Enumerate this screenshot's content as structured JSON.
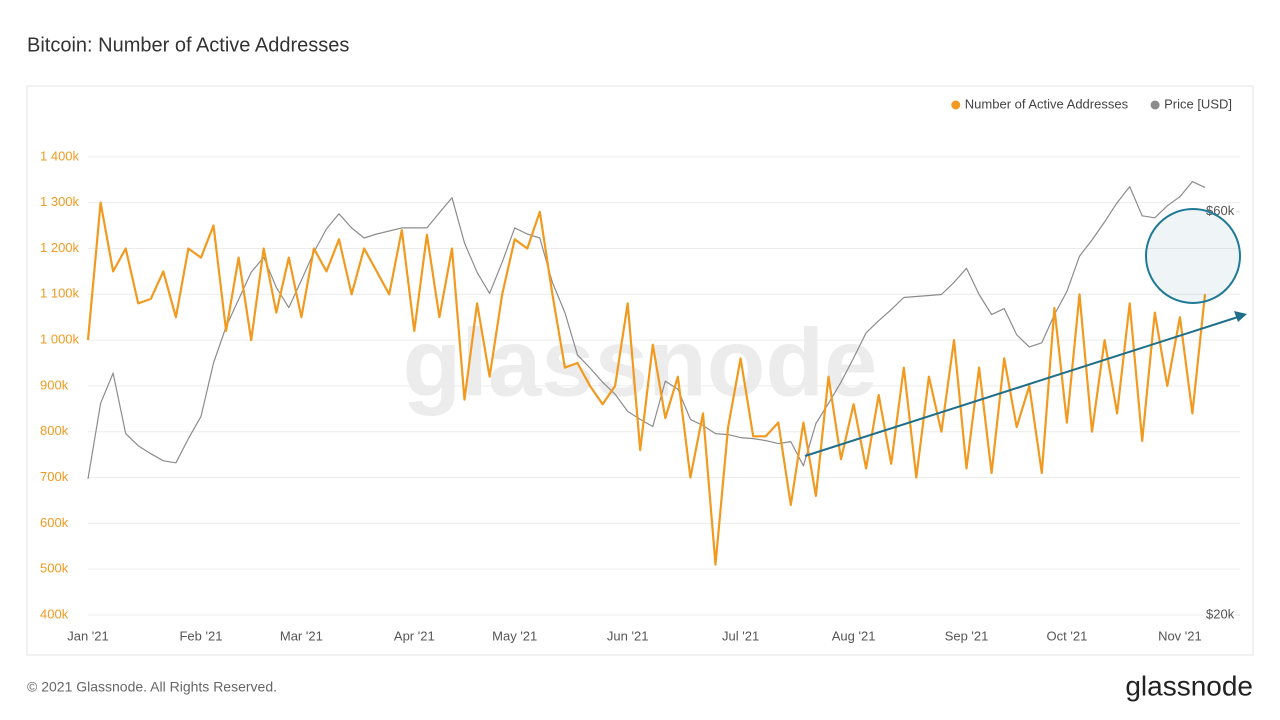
{
  "chart_data": {
    "type": "line",
    "title": "Bitcoin: Number of Active Addresses",
    "watermark": "glassnode",
    "footer": "© 2021 Glassnode. All Rights Reserved.",
    "logo": "glassnode",
    "categories": [
      "Jan '21",
      null,
      null,
      null,
      null,
      null,
      null,
      null,
      null,
      "Feb '21",
      null,
      null,
      null,
      null,
      null,
      null,
      null,
      "Mar '21",
      null,
      null,
      null,
      null,
      null,
      null,
      null,
      null,
      "Apr '21",
      null,
      null,
      null,
      null,
      null,
      null,
      null,
      "May '21",
      null,
      null,
      null,
      null,
      null,
      null,
      null,
      null,
      "Jun '21",
      null,
      null,
      null,
      null,
      null,
      null,
      null,
      null,
      "Jul '21",
      null,
      null,
      null,
      null,
      null,
      null,
      null,
      null,
      "Aug '21",
      null,
      null,
      null,
      null,
      null,
      null,
      null,
      null,
      "Sep '21",
      null,
      null,
      null,
      null,
      null,
      null,
      null,
      "Oct '21",
      null,
      null,
      null,
      null,
      null,
      null,
      null,
      null,
      "Nov '21",
      null,
      null
    ],
    "series": [
      {
        "name": "Number of Active Addresses",
        "color": "#f29a1f",
        "axis": "y",
        "values": [
          1000000,
          1300000,
          1150000,
          1200000,
          1080000,
          1090000,
          1150000,
          1050000,
          1200000,
          1180000,
          1250000,
          1020000,
          1180000,
          1000000,
          1200000,
          1060000,
          1180000,
          1050000,
          1200000,
          1150000,
          1220000,
          1100000,
          1200000,
          1150000,
          1100000,
          1240000,
          1020000,
          1230000,
          1050000,
          1200000,
          870000,
          1080000,
          920000,
          1100000,
          1220000,
          1200000,
          1280000,
          1100000,
          940000,
          950000,
          900000,
          860000,
          900000,
          1080000,
          760000,
          990000,
          830000,
          920000,
          700000,
          840000,
          510000,
          810000,
          960000,
          790000,
          790000,
          820000,
          640000,
          820000,
          660000,
          920000,
          740000,
          860000,
          720000,
          880000,
          730000,
          940000,
          700000,
          920000,
          800000,
          1000000,
          720000,
          940000,
          710000,
          960000,
          810000,
          900000,
          710000,
          1070000,
          820000,
          1100000,
          800000,
          1000000,
          840000,
          1080000,
          780000,
          1060000,
          900000,
          1050000,
          840000,
          1100000
        ]
      },
      {
        "name": "Price [USD]",
        "color": "#8c8c8c",
        "axis": "y2",
        "values": [
          33500,
          41000,
          44000,
          38000,
          36800,
          36000,
          35300,
          35100,
          37500,
          39700,
          45000,
          48600,
          51300,
          54000,
          55500,
          52500,
          50500,
          53200,
          56000,
          58300,
          59800,
          58400,
          57400,
          57800,
          58100,
          58400,
          58400,
          58400,
          59900,
          61400,
          56900,
          54000,
          51900,
          55000,
          58400,
          57800,
          57400,
          53000,
          50000,
          45800,
          44500,
          43100,
          41900,
          40200,
          39400,
          38700,
          43200,
          42400,
          39400,
          38800,
          38000,
          37900,
          37600,
          37500,
          37300,
          37000,
          37200,
          34800,
          39000,
          41000,
          43100,
          45500,
          48000,
          49200,
          50300,
          51500,
          51600,
          51700,
          51800,
          53000,
          54400,
          51800,
          49800,
          50400,
          47800,
          46600,
          47000,
          49800,
          52100,
          55600,
          57200,
          59000,
          60900,
          62500,
          59600,
          59400,
          60600,
          61500,
          63000,
          62400
        ]
      }
    ],
    "ylim": [
      400000,
      1500000
    ],
    "yticks": [
      {
        "value": 400000,
        "label": "400k"
      },
      {
        "value": 500000,
        "label": "500k"
      },
      {
        "value": 600000,
        "label": "600k"
      },
      {
        "value": 700000,
        "label": "700k"
      },
      {
        "value": 800000,
        "label": "800k"
      },
      {
        "value": 900000,
        "label": "900k"
      },
      {
        "value": 1000000,
        "label": "1 000k"
      },
      {
        "value": 1100000,
        "label": "1 100k"
      },
      {
        "value": 1200000,
        "label": "1 200k"
      },
      {
        "value": 1300000,
        "label": "1 300k"
      },
      {
        "value": 1400000,
        "label": "1 400k"
      }
    ],
    "y2lim": [
      20000,
      70000
    ],
    "y2ticks": [
      {
        "value": 20000,
        "label": "$20k"
      },
      {
        "value": 60000,
        "label": "$60k"
      }
    ],
    "grid": true,
    "legend": "top-right"
  }
}
